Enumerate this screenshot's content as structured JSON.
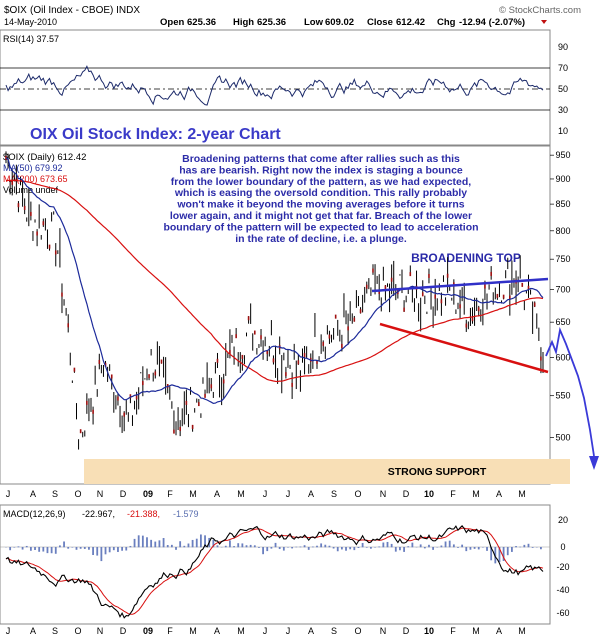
{
  "header": {
    "symbol": "$OIX",
    "name": "(Oil Index - CBOE) INDX",
    "date": "14-May-2010",
    "open_label": "Open",
    "open_value": "625.36",
    "high_label": "High",
    "high_value": "625.36",
    "low_label": "Low",
    "low_value": "609.02",
    "close_label": "Close",
    "close_value": "612.42",
    "chg_label": "Chg",
    "chg_value": "-12.94 (-2.07%)",
    "watermark": "© StockCharts.com"
  },
  "rsi_panel": {
    "label": "RSI(14) 37.57",
    "ticks": [
      "90",
      "70",
      "50",
      "30",
      "10"
    ]
  },
  "price_panel": {
    "chart_title": "OIX Oil Stock Index: 2-year Chart",
    "legend_main": "$OIX (Daily) 612.42",
    "legend_ma50": "MA(50) 679.92",
    "legend_ma200": "MA(200) 673.65",
    "legend_volume": "Volume undef",
    "annotation": "Broadening patterns that come after rallies such as this has are bearish. Right now the index is staging a bounce from the lower boundary of the pattern, as we had expected, which is easing the oversold condition. This rally probably won't make it beyond the moving averages before it turns lower again, and it might not get that far. Breach of the lower boundary of the pattern will be expected to lead to acceleration in the rate of decline, i.e. a plunge.",
    "broadening_label": "BROADENING TOP",
    "support_label": "STRONG SUPPORT",
    "ticks": [
      "950",
      "900",
      "850",
      "800",
      "750",
      "700",
      "650",
      "600",
      "550",
      "500"
    ]
  },
  "month_labels": [
    "J",
    "A",
    "S",
    "O",
    "N",
    "D",
    "09",
    "F",
    "M",
    "A",
    "M",
    "J",
    "J",
    "A",
    "S",
    "O",
    "N",
    "D",
    "10",
    "F",
    "M",
    "A",
    "M"
  ],
  "macd_panel": {
    "label": "MACD(12,26,9)",
    "values": [
      "-22.967,",
      "-21.388,",
      "-1.579"
    ],
    "ticks": [
      "20",
      "0",
      "-20",
      "-40",
      "-60"
    ]
  },
  "colors": {
    "price": "#000000",
    "ma50": "#1c2a9a",
    "ma200": "#d81010",
    "trendline_top": "#3030c8",
    "trendline_bottom": "#d81010",
    "support_band": "#f8dfb6",
    "projection": "#3a3ad8",
    "rsi_line": "#1c2a6a",
    "macd_line": "#000000",
    "signal_line": "#d81010",
    "histogram": "#6a7fbf",
    "title_color": "#3a3ac8",
    "annotation_color": "#2c2ca8"
  },
  "chart_data": {
    "type": "line",
    "title": "OIX Oil Stock Index: 2-year Chart",
    "x_axis": [
      "J",
      "A",
      "S",
      "O",
      "N",
      "D",
      "09",
      "F",
      "M",
      "A",
      "M",
      "J",
      "J",
      "A",
      "S",
      "O",
      "N",
      "D",
      "10",
      "F",
      "M",
      "A",
      "M"
    ],
    "y_range": [
      450,
      970
    ],
    "log_scale": true,
    "price_series": [
      {
        "x": "J",
        "y": 945
      },
      {
        "x": "A",
        "y": 820
      },
      {
        "x": "S",
        "y": 800
      },
      {
        "x": "O",
        "y": 500
      },
      {
        "x": "N",
        "y": 590
      },
      {
        "x": "D",
        "y": 520
      },
      {
        "x": "09",
        "y": 600
      },
      {
        "x": "F",
        "y": 520
      },
      {
        "x": "M",
        "y": 545
      },
      {
        "x": "A",
        "y": 590
      },
      {
        "x": "M",
        "y": 640
      },
      {
        "x": "J",
        "y": 615
      },
      {
        "x": "J",
        "y": 580
      },
      {
        "x": "A",
        "y": 630
      },
      {
        "x": "S",
        "y": 640
      },
      {
        "x": "O",
        "y": 700
      },
      {
        "x": "N",
        "y": 700
      },
      {
        "x": "D",
        "y": 690
      },
      {
        "x": "10",
        "y": 700
      },
      {
        "x": "F",
        "y": 665
      },
      {
        "x": "M",
        "y": 705
      },
      {
        "x": "A",
        "y": 725
      },
      {
        "x": "M",
        "y": 612
      }
    ],
    "series": [
      {
        "name": "$OIX (Daily)",
        "last": 612.42
      },
      {
        "name": "MA(50)",
        "last": 679.92
      },
      {
        "name": "MA(200)",
        "last": 673.65
      }
    ],
    "indicators": {
      "rsi14": 37.57,
      "macd": -22.967,
      "signal": -21.388,
      "histogram": -1.579
    },
    "annotations": [
      "BROADENING TOP",
      "STRONG SUPPORT"
    ]
  }
}
